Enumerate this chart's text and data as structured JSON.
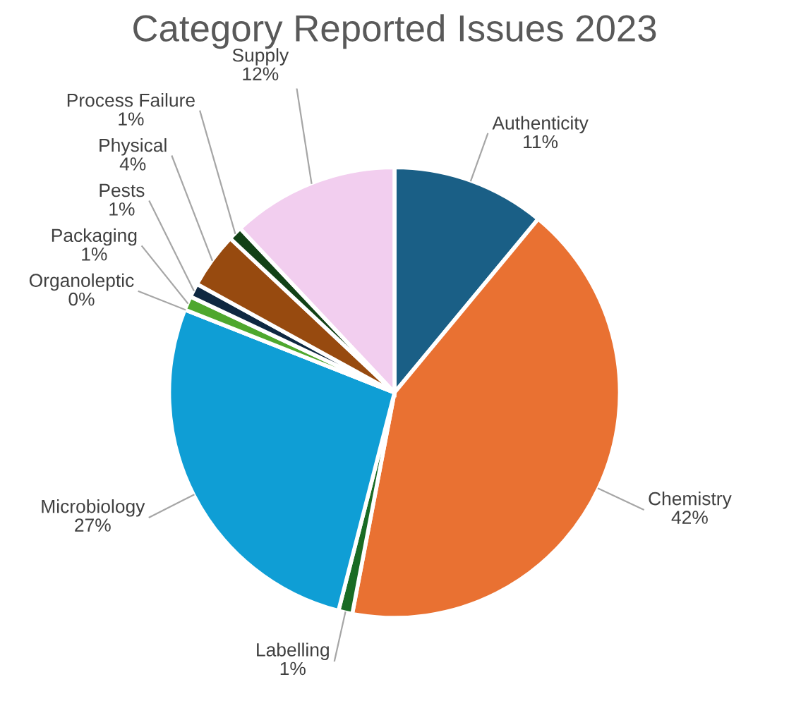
{
  "chart_data": {
    "type": "pie",
    "title": "Category Reported Issues 2023",
    "categories": [
      "Authenticity",
      "Chemistry",
      "Labelling",
      "Microbiology",
      "Organoleptic",
      "Packaging",
      "Pests",
      "Physical",
      "Process Failure",
      "Supply"
    ],
    "values": [
      11,
      42,
      1,
      27,
      0,
      1,
      1,
      4,
      1,
      12
    ],
    "colors": [
      "#1a5f86",
      "#e97132",
      "#196b24",
      "#0f9ed5",
      "#a02b93",
      "#4ea72e",
      "#0e2841",
      "#974a0f",
      "#124116",
      "#f2ceef"
    ],
    "value_labels": [
      "11%",
      "42%",
      "1%",
      "27%",
      "0%",
      "1%",
      "1%",
      "4%",
      "1%",
      "12%"
    ],
    "legend": false
  }
}
